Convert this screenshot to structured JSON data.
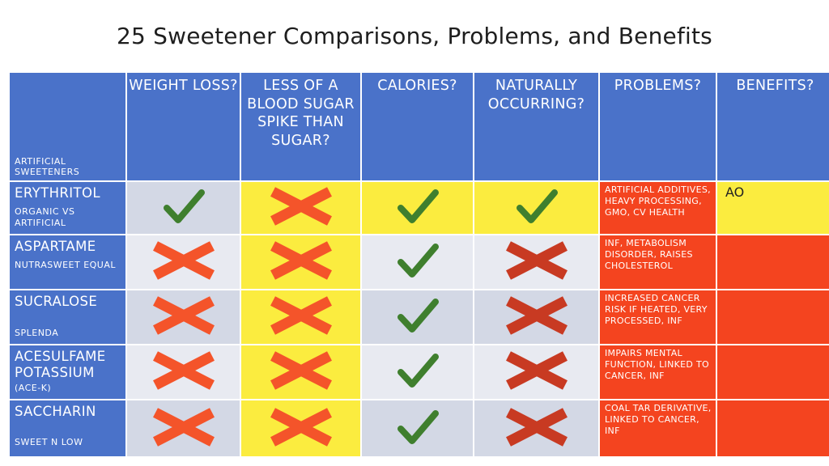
{
  "title": "25 Sweetener Comparisons, Problems, and Benefits",
  "corner_label": "ARTIFICIAL SWEETENERS",
  "columns": [
    "WEIGHT LOSS?",
    "LESS OF A BLOOD SUGAR SPIKE THAN SUGAR?",
    "CALORIES?",
    "NATURALLY OCCURRING?",
    "PROBLEMS?",
    "BENEFITS?"
  ],
  "rows": [
    {
      "name": "ERYTHRITOL",
      "sub": "ORGANIC VS ARTIFICIAL",
      "marks": [
        "check",
        "cross",
        "check",
        "check"
      ],
      "problems": "ARTIFICIAL ADDITIVES, HEAVY PROCESSING, GMO, CV HEALTH",
      "benefits": "AO"
    },
    {
      "name": "ASPARTAME",
      "sub": "NUTRASWEET EQUAL",
      "marks": [
        "cross",
        "cross",
        "check",
        "cross"
      ],
      "problems": "INF, METABOLISM DISORDER, RAISES CHOLESTEROL",
      "benefits": ""
    },
    {
      "name": "SUCRALOSE",
      "sub": "SPLENDA",
      "marks": [
        "cross",
        "cross",
        "check",
        "cross"
      ],
      "problems": "INCREASED CANCER RISK IF HEATED, VERY PROCESSED, INF",
      "benefits": ""
    },
    {
      "name": "ACESULFAME POTASSIUM",
      "sub": "(ACE-K)",
      "marks": [
        "cross",
        "cross",
        "check",
        "cross"
      ],
      "problems": "IMPAIRS MENTAL FUNCTION, LINKED TO CANCER, INF",
      "benefits": ""
    },
    {
      "name": "SACCHARIN",
      "sub": "SWEET N LOW",
      "marks": [
        "cross",
        "cross",
        "check",
        "cross"
      ],
      "problems": "COAL TAR DERIVATIVE, LINKED TO CANCER, INF",
      "benefits": ""
    }
  ],
  "colors": {
    "header_blue": "#4a72c9",
    "check_green": "#3f7f2e",
    "cross_orange": "#f4542a",
    "cross_dark_red": "#c83a22",
    "highlight_yellow": "#fbec3f",
    "problem_red": "#f4441f"
  }
}
